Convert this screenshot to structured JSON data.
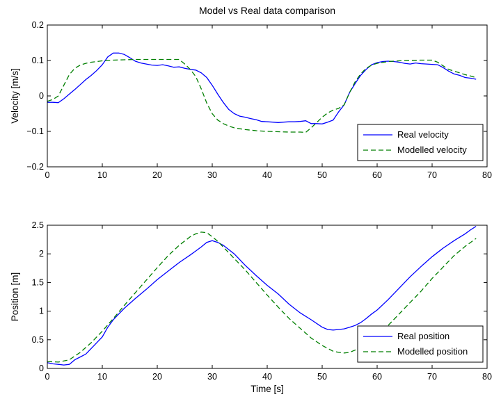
{
  "figure_title": "Model vs Real data comparison",
  "chart_data": [
    {
      "type": "line",
      "title": "Model vs Real data comparison",
      "xlabel": "",
      "ylabel": "Velocity [m/s]",
      "xlim": [
        0,
        80
      ],
      "ylim": [
        -0.2,
        0.2
      ],
      "xticks": [
        "0",
        "10",
        "20",
        "30",
        "40",
        "50",
        "60",
        "70",
        "80"
      ],
      "yticks": [
        "−0.2",
        "−0.1",
        "0",
        "0.1",
        "0.2"
      ],
      "ytick_values": [
        -0.2,
        -0.1,
        0,
        0.1,
        0.2
      ],
      "grid": false,
      "legend": "lower-right",
      "series": [
        {
          "name": "Real velocity",
          "color": "#0000ff",
          "style": "solid",
          "x": [
            0,
            1,
            2,
            3,
            4,
            5,
            6,
            7,
            8,
            9,
            10,
            11,
            12,
            13,
            14,
            15,
            16,
            17,
            18,
            19,
            20,
            21,
            22,
            23,
            24,
            25,
            26,
            27,
            28,
            29,
            30,
            31,
            32,
            33,
            34,
            35,
            36,
            37,
            38,
            39,
            40,
            41,
            42,
            43,
            44,
            45,
            46,
            47,
            48,
            49,
            50,
            51,
            52,
            53,
            54,
            55,
            56,
            57,
            58,
            59,
            60,
            61,
            62,
            63,
            64,
            65,
            66,
            67,
            68,
            69,
            70,
            71,
            72,
            73,
            74,
            75,
            76,
            77,
            78
          ],
          "y": [
            -0.018,
            -0.018,
            -0.019,
            -0.008,
            0.005,
            0.018,
            0.032,
            0.046,
            0.058,
            0.072,
            0.088,
            0.11,
            0.121,
            0.121,
            0.117,
            0.108,
            0.098,
            0.093,
            0.09,
            0.087,
            0.086,
            0.088,
            0.085,
            0.081,
            0.082,
            0.078,
            0.075,
            0.073,
            0.065,
            0.052,
            0.03,
            0.005,
            -0.018,
            -0.038,
            -0.05,
            -0.057,
            -0.06,
            -0.064,
            -0.067,
            -0.072,
            -0.073,
            -0.074,
            -0.075,
            -0.074,
            -0.073,
            -0.073,
            -0.072,
            -0.07,
            -0.078,
            -0.078,
            -0.079,
            -0.074,
            -0.068,
            -0.045,
            -0.025,
            0.01,
            0.035,
            0.058,
            0.075,
            0.088,
            0.094,
            0.097,
            0.098,
            0.097,
            0.095,
            0.092,
            0.09,
            0.093,
            0.091,
            0.09,
            0.089,
            0.088,
            0.08,
            0.07,
            0.062,
            0.058,
            0.052,
            0.05,
            0.047
          ]
        },
        {
          "name": "Modelled velocity",
          "color": "#007f00",
          "style": "dashed",
          "x": [
            0,
            1,
            2,
            3,
            4,
            5,
            6,
            7,
            8,
            10,
            12,
            14,
            16,
            18,
            20,
            22,
            24,
            25,
            26,
            27,
            28,
            29,
            30,
            31,
            32,
            33,
            34,
            36,
            38,
            40,
            42,
            44,
            46,
            47,
            48,
            49,
            50,
            51,
            52,
            53,
            54,
            55,
            56,
            57,
            58,
            59,
            60,
            62,
            64,
            66,
            68,
            70,
            71,
            72,
            73,
            74,
            75,
            76,
            77,
            78
          ],
          "y": [
            -0.015,
            -0.01,
            0.0,
            0.03,
            0.06,
            0.078,
            0.087,
            0.092,
            0.095,
            0.099,
            0.101,
            0.102,
            0.103,
            0.103,
            0.103,
            0.103,
            0.103,
            0.09,
            0.075,
            0.055,
            0.02,
            -0.02,
            -0.05,
            -0.068,
            -0.078,
            -0.085,
            -0.09,
            -0.095,
            -0.098,
            -0.1,
            -0.101,
            -0.102,
            -0.102,
            -0.103,
            -0.09,
            -0.075,
            -0.06,
            -0.048,
            -0.04,
            -0.035,
            -0.025,
            0.01,
            0.04,
            0.062,
            0.078,
            0.087,
            0.092,
            0.097,
            0.099,
            0.1,
            0.101,
            0.101,
            0.095,
            0.085,
            0.075,
            0.07,
            0.065,
            0.06,
            0.056,
            0.052
          ]
        }
      ]
    },
    {
      "type": "line",
      "title": "",
      "xlabel": "Time [s]",
      "ylabel": "Position [m]",
      "xlim": [
        0,
        80
      ],
      "ylim": [
        0,
        2.5
      ],
      "xticks": [
        "0",
        "10",
        "20",
        "30",
        "40",
        "50",
        "60",
        "70",
        "80"
      ],
      "yticks": [
        "0",
        "0.5",
        "1",
        "1.5",
        "2",
        "2.5"
      ],
      "ytick_values": [
        0,
        0.5,
        1,
        1.5,
        2,
        2.5
      ],
      "grid": false,
      "legend": "lower-right",
      "series": [
        {
          "name": "Real position",
          "color": "#0000ff",
          "style": "solid",
          "x": [
            0,
            1,
            2,
            3,
            4,
            5,
            6,
            7,
            8,
            9,
            10,
            11,
            12,
            13,
            14,
            16,
            18,
            20,
            22,
            24,
            26,
            27,
            28,
            29,
            30,
            31,
            32,
            34,
            36,
            38,
            40,
            42,
            44,
            46,
            48,
            50,
            51,
            52,
            53,
            54,
            55,
            56,
            57,
            58,
            59,
            60,
            62,
            64,
            66,
            68,
            70,
            72,
            74,
            76,
            77,
            78
          ],
          "y": [
            0.1,
            0.08,
            0.07,
            0.06,
            0.07,
            0.15,
            0.2,
            0.25,
            0.35,
            0.45,
            0.55,
            0.72,
            0.85,
            0.95,
            1.05,
            1.22,
            1.38,
            1.55,
            1.7,
            1.85,
            1.98,
            2.05,
            2.12,
            2.2,
            2.23,
            2.2,
            2.15,
            2.0,
            1.8,
            1.62,
            1.45,
            1.3,
            1.12,
            0.97,
            0.85,
            0.72,
            0.68,
            0.67,
            0.68,
            0.69,
            0.72,
            0.75,
            0.8,
            0.87,
            0.95,
            1.02,
            1.2,
            1.4,
            1.6,
            1.78,
            1.95,
            2.1,
            2.23,
            2.35,
            2.42,
            2.48
          ]
        },
        {
          "name": "Modelled position",
          "color": "#007f00",
          "style": "dashed",
          "x": [
            0,
            2,
            4,
            6,
            8,
            10,
            12,
            14,
            16,
            18,
            20,
            22,
            24,
            26,
            27,
            28,
            29,
            30,
            31,
            32,
            34,
            36,
            38,
            40,
            42,
            44,
            46,
            48,
            50,
            52,
            53,
            54,
            55,
            56,
            58,
            60,
            62,
            64,
            66,
            68,
            70,
            72,
            74,
            76,
            78
          ],
          "y": [
            0.12,
            0.11,
            0.15,
            0.28,
            0.45,
            0.65,
            0.87,
            1.1,
            1.32,
            1.54,
            1.76,
            1.97,
            2.15,
            2.3,
            2.35,
            2.38,
            2.37,
            2.3,
            2.22,
            2.12,
            1.92,
            1.72,
            1.5,
            1.28,
            1.07,
            0.87,
            0.7,
            0.53,
            0.4,
            0.3,
            0.28,
            0.27,
            0.28,
            0.32,
            0.42,
            0.57,
            0.75,
            0.95,
            1.15,
            1.35,
            1.57,
            1.77,
            1.97,
            2.13,
            2.27
          ]
        }
      ]
    }
  ]
}
